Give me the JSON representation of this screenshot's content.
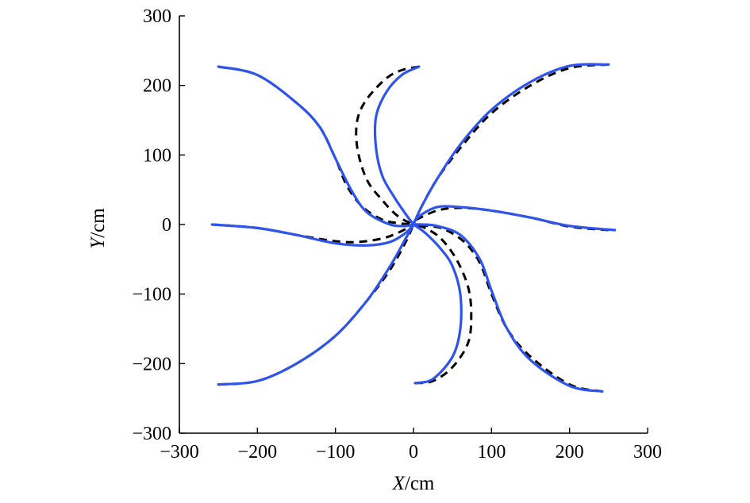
{
  "chart_data": {
    "type": "line",
    "xlabel": {
      "var": "X",
      "unit": "/cm"
    },
    "ylabel": {
      "var": "Y",
      "unit": "/cm"
    },
    "xlim": [
      -300,
      300
    ],
    "ylim": [
      -300,
      300
    ],
    "xticks": [
      -300,
      -200,
      -100,
      0,
      100,
      200,
      300
    ],
    "yticks": [
      -300,
      -200,
      -100,
      0,
      100,
      200,
      300
    ],
    "xtick_labels": [
      "−300",
      "−200",
      "−100",
      "0",
      "100",
      "200",
      "300"
    ],
    "ytick_labels": [
      "−300",
      "−200",
      "−100",
      "0",
      "100",
      "200",
      "300"
    ],
    "grid": false,
    "series_styles": [
      {
        "style": "solid",
        "color": "#2F54EB"
      },
      {
        "style": "dashed",
        "color": "#000000"
      }
    ],
    "series": [
      {
        "style": "dashed",
        "color": "#000000",
        "paths": [
          {
            "x": [
              -250,
              -200,
              -150,
              -120,
              -100,
              -85,
              -65,
              -40,
              -20,
              0
            ],
            "y": [
              227,
              215,
              175,
              140,
              95,
              55,
              25,
              7,
              2,
              0
            ]
          },
          {
            "x": [
              7,
              -15,
              -35,
              -60,
              -72,
              -72,
              -60,
              -40,
              -20,
              0
            ],
            "y": [
              227,
              222,
              210,
              180,
              150,
              110,
              65,
              35,
              12,
              0
            ]
          },
          {
            "x": [
              250,
              200,
              150,
              100,
              60,
              30,
              10,
              0
            ],
            "y": [
              230,
              225,
              200,
              160,
              110,
              65,
              25,
              0
            ]
          },
          {
            "x": [
              -258,
              -200,
              -150,
              -100,
              -70,
              -40,
              -20,
              0
            ],
            "y": [
              0,
              -5,
              -15,
              -24,
              -25,
              -20,
              -12,
              0
            ]
          },
          {
            "x": [
              -250,
              -200,
              -150,
              -100,
              -60,
              -30,
              -10,
              0
            ],
            "y": [
              -230,
              -225,
              -200,
              -160,
              -110,
              -65,
              -25,
              0
            ]
          },
          {
            "x": [
              250,
              200,
              150,
              100,
              60,
              30,
              0
            ],
            "y": [
              -8,
              -3,
              10,
              20,
              24,
              20,
              5
            ]
          },
          {
            "x": [
              242,
              200,
              150,
              120,
              100,
              85,
              65,
              40,
              20,
              0
            ],
            "y": [
              -240,
              -230,
              -190,
              -150,
              -100,
              -55,
              -25,
              -7,
              -2,
              0
            ]
          },
          {
            "x": [
              2,
              25,
              50,
              70,
              74,
              70,
              55,
              35,
              15,
              0
            ],
            "y": [
              -228,
              -225,
              -205,
              -170,
              -130,
              -90,
              -50,
              -20,
              -5,
              0
            ]
          }
        ]
      },
      {
        "style": "solid",
        "color": "#2F54EB",
        "paths": [
          {
            "x": [
              -250,
              -200,
              -150,
              -120,
              -100,
              -80,
              -60,
              -30,
              -10,
              0
            ],
            "y": [
              227,
              215,
              175,
              140,
              95,
              50,
              18,
              0,
              -2,
              0
            ]
          },
          {
            "x": [
              7,
              -15,
              -35,
              -48,
              -48,
              -40,
              -25,
              -10,
              0
            ],
            "y": [
              227,
              215,
              190,
              155,
              110,
              70,
              40,
              15,
              0
            ]
          },
          {
            "x": [
              250,
              200,
              150,
              100,
              60,
              30,
              10,
              0
            ],
            "y": [
              230,
              228,
              205,
              165,
              115,
              65,
              25,
              0
            ]
          },
          {
            "x": [
              -258,
              -200,
              -150,
              -100,
              -60,
              -30,
              -10,
              0
            ],
            "y": [
              0,
              -5,
              -15,
              -27,
              -30,
              -25,
              -12,
              0
            ]
          },
          {
            "x": [
              -250,
              -200,
              -150,
              -100,
              -60,
              -30,
              -10,
              0
            ],
            "y": [
              -230,
              -225,
              -200,
              -160,
              -110,
              -60,
              -20,
              0
            ]
          },
          {
            "x": [
              258,
              200,
              150,
              100,
              60,
              30,
              5,
              0
            ],
            "y": [
              -8,
              -2,
              10,
              20,
              25,
              25,
              10,
              0
            ]
          },
          {
            "x": [
              242,
              200,
              150,
              120,
              100,
              85,
              60,
              30,
              10,
              0
            ],
            "y": [
              -240,
              -232,
              -195,
              -150,
              -95,
              -50,
              -15,
              -2,
              0,
              0
            ]
          },
          {
            "x": [
              2,
              25,
              50,
              60,
              60,
              50,
              35,
              15,
              0
            ],
            "y": [
              -228,
              -222,
              -190,
              -150,
              -100,
              -60,
              -35,
              -12,
              0
            ]
          }
        ]
      }
    ]
  }
}
